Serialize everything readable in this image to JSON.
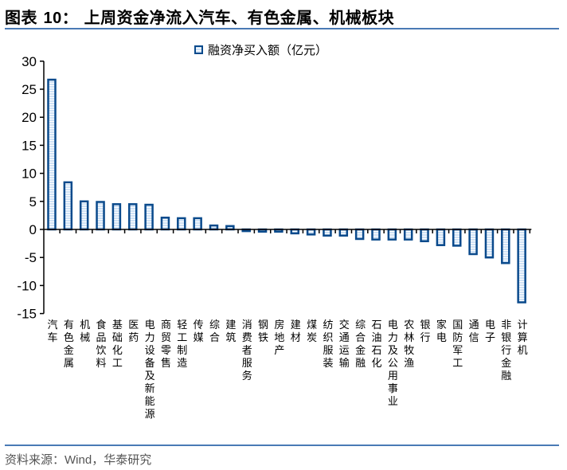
{
  "title": {
    "prefix": "图表 ",
    "number": "10",
    "suffix": "：  上周资金净流入汽车、有色金属、机械板块"
  },
  "legend": {
    "label": "融资净买入额（亿元）"
  },
  "footer": {
    "label": "资料来源：",
    "source": "Wind，华泰研究"
  },
  "colors": {
    "bar_border": "#0a4a8c",
    "bar_fill": "#cfe2f6",
    "rule": "#4a7ab5"
  },
  "chart_data": {
    "type": "bar",
    "title": "上周资金净流入汽车、有色金属、机械板块",
    "xlabel": "",
    "ylabel": "",
    "ylim": [
      -15,
      30
    ],
    "yticks": [
      30,
      25,
      20,
      15,
      10,
      5,
      0,
      -5,
      -10,
      -15
    ],
    "grid": false,
    "legend_position": "top",
    "series": [
      {
        "name": "融资净买入额（亿元）",
        "values": [
          26.7,
          8.4,
          5.0,
          4.9,
          4.5,
          4.5,
          4.4,
          2.1,
          2.0,
          2.0,
          0.7,
          0.6,
          -0.3,
          -0.4,
          -0.4,
          -0.7,
          -0.9,
          -1.1,
          -1.1,
          -1.7,
          -1.8,
          -1.8,
          -1.8,
          -2.1,
          -2.8,
          -2.9,
          -4.4,
          -5.0,
          -6.0,
          -13.0
        ]
      }
    ],
    "categories": [
      "汽车",
      "有色金属",
      "机械",
      "食品饮料",
      "基础化工",
      "医药",
      "电力设备及新能源",
      "商贸零售",
      "轻工制造",
      "传媒",
      "综合",
      "建筑",
      "消费者服务",
      "钢铁",
      "房地产",
      "建材",
      "煤炭",
      "纺织服装",
      "交通运输",
      "综合金融",
      "石油石化",
      "电力及公用事业",
      "农林牧渔",
      "银行",
      "家电",
      "国防军工",
      "通信",
      "电子",
      "非银行金融",
      "计算机"
    ]
  }
}
